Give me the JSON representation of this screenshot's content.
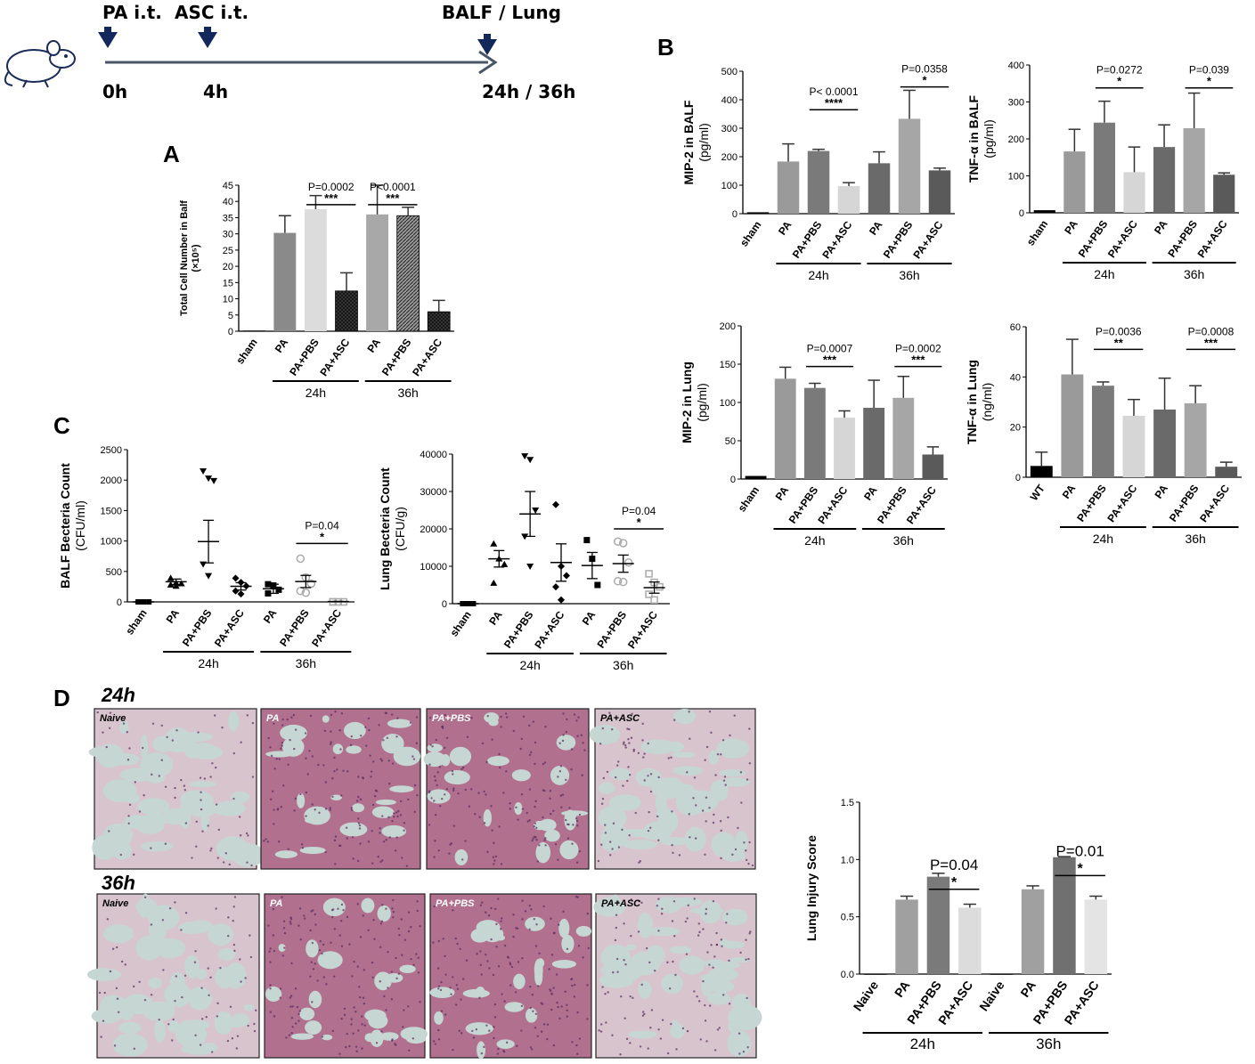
{
  "labels": {
    "A": "A",
    "B": "B",
    "C": "C",
    "D": "D"
  },
  "timeline": {
    "events": [
      {
        "label": "PA i.t.",
        "time": "0h"
      },
      {
        "label": "ASC i.t.",
        "time": "4h"
      },
      {
        "label": "BALF / Lung",
        "time": "24h / 36h"
      }
    ]
  },
  "colors": {
    "sham": "#000000",
    "pa24": "#8e8e8e",
    "pbs24": "#6f6f6f",
    "asc24": "#d7d7d7",
    "pa36": "#5f5f5f",
    "pbs36": "#9e9e9e",
    "asc36": "#555555",
    "tissue_bg": "#c8d5d0",
    "tissue_cell": "#8a4c7c"
  },
  "groups": {
    "g24": "24h",
    "g36": "36h"
  },
  "chart_data": [
    {
      "id": "A",
      "type": "bar",
      "ylabel": "Total Cell Number in Balf",
      "ylabel2": "(×10⁵)",
      "ylim": [
        0,
        45
      ],
      "yticks": [
        0,
        5,
        10,
        15,
        20,
        25,
        30,
        35,
        40,
        45
      ],
      "categories": [
        "sham",
        "PA",
        "PA+PBS",
        "PA+ASC",
        "PA",
        "PA+PBS",
        "PA+ASC"
      ],
      "values": [
        0.2,
        30.3,
        37.6,
        12.4,
        36,
        35.6,
        6.0
      ],
      "errors": [
        0,
        5.3,
        4.2,
        5.6,
        9.0,
        2.6,
        3.5
      ],
      "fills": [
        "#000000",
        "#8a8a8a",
        "#dcdcdc",
        "hatch-dark",
        "#a8a8a8",
        "hatch-light",
        "hatch-dark"
      ],
      "groups": [
        {
          "label": "24h",
          "from": 1,
          "to": 3
        },
        {
          "label": "36h",
          "from": 4,
          "to": 6
        }
      ],
      "sig": [
        {
          "from": 2,
          "to": 3,
          "y": 39,
          "p": "P=0.0002",
          "stars": "***"
        },
        {
          "from": 4,
          "to": 5,
          "y": 39,
          "p": "P<0.0001",
          "stars": "***"
        }
      ]
    },
    {
      "id": "B1",
      "type": "bar",
      "ylabel": "MIP-2 in BALF",
      "ylabel2": "(pg/ml)",
      "ylim": [
        0,
        500
      ],
      "yticks": [
        0,
        100,
        200,
        300,
        400,
        500
      ],
      "categories": [
        "sham",
        "PA",
        "PA+PBS",
        "PA+ASC",
        "PA",
        "PA+PBS",
        "PA+ASC"
      ],
      "values": [
        5,
        183,
        220,
        97,
        177,
        333,
        152
      ],
      "errors": [
        0,
        62,
        6,
        12,
        40,
        100,
        8
      ],
      "fills": [
        "#000000",
        "#9a9a9a",
        "#7a7a7a",
        "#d6d6d6",
        "#6a6a6a",
        "#a6a6a6",
        "#5a5a5a"
      ],
      "groups": [
        {
          "label": "24h",
          "from": 1,
          "to": 3
        },
        {
          "label": "36h",
          "from": 4,
          "to": 6
        }
      ],
      "sig": [
        {
          "from": 2,
          "to": 3,
          "y": 365,
          "p": "P< 0.0001",
          "stars": "****"
        },
        {
          "from": 5,
          "to": 6,
          "y": 445,
          "p": "P=0.0358",
          "stars": "*"
        }
      ]
    },
    {
      "id": "B2",
      "type": "bar",
      "ylabel": "TNF-α in BALF",
      "ylabel2": "(pg/ml)",
      "ylim": [
        0,
        400
      ],
      "yticks": [
        0,
        100,
        200,
        300,
        400
      ],
      "categories": [
        "sham",
        "PA",
        "PA+PBS",
        "PA+ASC",
        "PA",
        "PA+PBS",
        "PA+ASC"
      ],
      "values": [
        7,
        166,
        244,
        110,
        178,
        229,
        103
      ],
      "errors": [
        0,
        60,
        58,
        68,
        60,
        95,
        5
      ],
      "fills": [
        "#000000",
        "#9a9a9a",
        "#7a7a7a",
        "#d6d6d6",
        "#6a6a6a",
        "#a6a6a6",
        "#5a5a5a"
      ],
      "groups": [
        {
          "label": "24h",
          "from": 1,
          "to": 3
        },
        {
          "label": "36h",
          "from": 4,
          "to": 6
        }
      ],
      "sig": [
        {
          "from": 2,
          "to": 3,
          "y": 338,
          "p": "P=0.0272",
          "stars": "*"
        },
        {
          "from": 5,
          "to": 6,
          "y": 338,
          "p": "P=0.039",
          "stars": "*"
        }
      ]
    },
    {
      "id": "B3",
      "type": "bar",
      "ylabel": "MIP-2 in Lung",
      "ylabel2": "(pg/ml)",
      "ylim": [
        0,
        200
      ],
      "yticks": [
        0,
        50,
        100,
        150,
        200
      ],
      "categories": [
        "sham",
        "PA",
        "PA+PBS",
        "PA+ASC",
        "PA",
        "PA+PBS",
        "PA+ASC"
      ],
      "values": [
        4,
        131,
        119,
        80,
        93,
        106,
        32
      ],
      "errors": [
        0,
        15,
        6,
        9,
        36,
        28,
        10
      ],
      "fills": [
        "#000000",
        "#9a9a9a",
        "#7a7a7a",
        "#d6d6d6",
        "#6a6a6a",
        "#a6a6a6",
        "#5a5a5a"
      ],
      "groups": [
        {
          "label": "24h",
          "from": 1,
          "to": 3
        },
        {
          "label": "36h",
          "from": 4,
          "to": 6
        }
      ],
      "sig": [
        {
          "from": 2,
          "to": 3,
          "y": 147,
          "p": "P=0.0007",
          "stars": "***"
        },
        {
          "from": 5,
          "to": 6,
          "y": 147,
          "p": "P=0.0002",
          "stars": "***"
        }
      ]
    },
    {
      "id": "B4",
      "type": "bar",
      "ylabel": "TNF-α in Lung",
      "ylabel2": "(ng/ml)",
      "ylim": [
        0,
        60
      ],
      "yticks": [
        0,
        20,
        40,
        60
      ],
      "categories": [
        "WT",
        "PA",
        "PA+PBS",
        "PA+ASC",
        "PA",
        "PA+PBS",
        "PA+ASC"
      ],
      "values": [
        4.5,
        41,
        36.5,
        24.5,
        27,
        29.5,
        4.2
      ],
      "errors": [
        5.5,
        14,
        1.5,
        6.5,
        12.5,
        7,
        1.8
      ],
      "fills": [
        "#000000",
        "#9a9a9a",
        "#7a7a7a",
        "#d6d6d6",
        "#6a6a6a",
        "#a6a6a6",
        "#5a5a5a"
      ],
      "groups": [
        {
          "label": "24h",
          "from": 1,
          "to": 3
        },
        {
          "label": "36h",
          "from": 4,
          "to": 6
        }
      ],
      "sig": [
        {
          "from": 2,
          "to": 3,
          "y": 51,
          "p": "P=0.0036",
          "stars": "**"
        },
        {
          "from": 5,
          "to": 6,
          "y": 51,
          "p": "P=0.0008",
          "stars": "***"
        }
      ]
    },
    {
      "id": "C1",
      "type": "scatter",
      "ylabel": "BALF Becteria Count",
      "ylabel2": "(CFU/ml)",
      "ylim": [
        0,
        2500
      ],
      "yticks": [
        0,
        500,
        1000,
        1500,
        2000,
        2500
      ],
      "categories": [
        "sham",
        "PA",
        "PA+PBS",
        "PA+ASC",
        "PA",
        "PA+PBS",
        "PA+ASC"
      ],
      "markers": [
        "square",
        "triangle",
        "tri-down",
        "diamond",
        "square-filled",
        "circle-open",
        "square-open"
      ],
      "points": [
        [
          0,
          0,
          0,
          0,
          0
        ],
        [
          390,
          310,
          300,
          280,
          260
        ],
        [
          2150,
          2030,
          1990,
          620,
          430
        ],
        [
          390,
          320,
          260,
          180,
          130
        ],
        [
          290,
          270,
          200,
          140
        ],
        [
          710,
          400,
          300,
          180,
          150
        ],
        [
          0,
          0,
          0,
          0
        ]
      ],
      "mean": [
        0,
        330,
        990,
        255,
        215,
        335,
        5
      ],
      "sem": [
        0,
        45,
        350,
        60,
        75,
        100,
        3
      ],
      "groups": [
        {
          "label": "24h",
          "from": 1,
          "to": 3
        },
        {
          "label": "36h",
          "from": 4,
          "to": 6
        }
      ],
      "sig": [
        {
          "from": 5,
          "to": 6,
          "y": 960,
          "p": "P=0.04",
          "stars": "*"
        }
      ]
    },
    {
      "id": "C2",
      "type": "scatter",
      "ylabel": "Lung Becteria Count",
      "ylabel2": "(CFU/g)",
      "ylim": [
        0,
        40000
      ],
      "yticks": [
        0,
        10000,
        20000,
        30000,
        40000
      ],
      "categories": [
        "sham",
        "PA",
        "PA+PBS",
        "PA+ASC",
        "PA",
        "PA+PBS",
        "PA+ASC"
      ],
      "markers": [
        "square",
        "triangle",
        "tri-down",
        "diamond",
        "square-filled",
        "circle-open",
        "square-open"
      ],
      "points": [
        [
          0,
          0,
          0,
          0,
          0
        ],
        [
          16000,
          12000,
          10500,
          5500
        ],
        [
          39500,
          38500,
          25000,
          18000,
          10000
        ],
        [
          26500,
          10000,
          7500,
          4500,
          1000
        ],
        [
          17000,
          12000,
          5000
        ],
        [
          16600,
          16200,
          11000,
          6000,
          5800
        ],
        [
          8000,
          5700,
          4500,
          2500,
          1000
        ]
      ],
      "mean": [
        0,
        12000,
        24000,
        11000,
        10200,
        10700,
        4300
      ],
      "sem": [
        0,
        2200,
        6000,
        5000,
        3500,
        2300,
        1500
      ],
      "groups": [
        {
          "label": "24h",
          "from": 1,
          "to": 3
        },
        {
          "label": "36h",
          "from": 4,
          "to": 6
        }
      ],
      "sig": [
        {
          "from": 5,
          "to": 6,
          "y": 20000,
          "p": "P=0.04",
          "stars": "*"
        }
      ]
    },
    {
      "id": "D",
      "type": "bar",
      "ylabel": "Lung Injury Score",
      "ylabel2": "",
      "ylim": [
        0,
        1.5
      ],
      "yticks": [
        0.0,
        0.5,
        1.0,
        1.5
      ],
      "categories": [
        "Naive",
        "PA",
        "PA+PBS",
        "PA+ASC",
        "Naive",
        "PA",
        "PA+PBS",
        "PA+ASC"
      ],
      "values": [
        0,
        0.65,
        0.85,
        0.58,
        0,
        0.74,
        1.02,
        0.65
      ],
      "errors": [
        0,
        0.03,
        0.03,
        0.03,
        0,
        0.03,
        0.005,
        0.03
      ],
      "fills": [
        "#000000",
        "#a0a0a0",
        "#7a7a7a",
        "#dcdcdc",
        "#000000",
        "#a0a0a0",
        "#707070",
        "#e4e4e4"
      ],
      "groups": [
        {
          "label": "24h",
          "from": 0,
          "to": 3
        },
        {
          "label": "36h",
          "from": 4,
          "to": 7
        }
      ],
      "sig": [
        {
          "from": 2,
          "to": 3,
          "y": 0.74,
          "p": "P=0.04",
          "stars": "*"
        },
        {
          "from": 6,
          "to": 7,
          "y": 0.86,
          "p": "P=0.01",
          "stars": "*"
        }
      ]
    }
  ],
  "histology": {
    "rows": [
      {
        "time": "24h",
        "panels": [
          "Naive",
          "PA",
          "PA+PBS",
          "PA+ASC"
        ]
      },
      {
        "time": "36h",
        "panels": [
          "Naive",
          "PA",
          "PA+PBS",
          "PA+ASC"
        ]
      }
    ]
  }
}
